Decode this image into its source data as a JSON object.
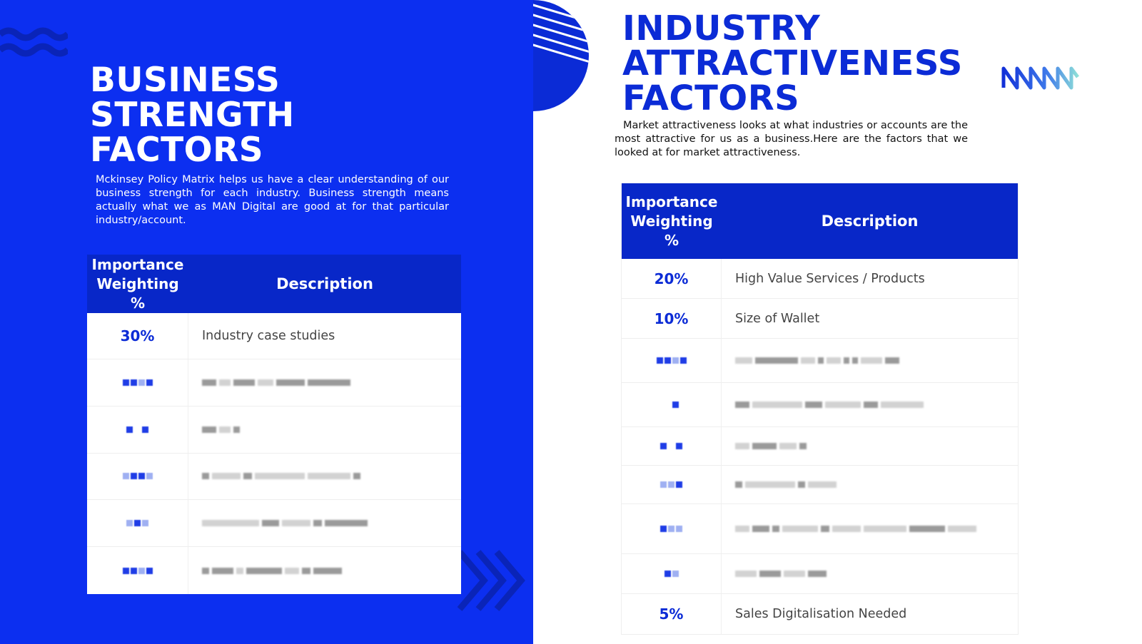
{
  "left": {
    "title_lines": [
      "BUSINESS",
      "STRENGTH",
      "FACTORS"
    ],
    "description": "Mckinsey Policy Matrix helps us have a clear understanding of our business strength for each industry. Business strength means actually what we as MAN Digital are good at for that particular industry/account.",
    "table": {
      "header_weight": "Importance Weighting %",
      "header_description": "Description",
      "rows": [
        {
          "weight": "30%",
          "description": "Industry case studies"
        }
      ]
    }
  },
  "right": {
    "title_lines": [
      "INDUSTRY",
      "ATTRACTIVENESS",
      "FACTORS"
    ],
    "description": "Market attractiveness looks at what industries or accounts are the most attractive for us as a business.Here are the factors that we looked at for market attractiveness.",
    "table": {
      "header_weight": "Importance Weighting %",
      "header_description": "Description",
      "rows_top": [
        {
          "weight": "20%",
          "description": "High Value Services / Products"
        },
        {
          "weight": "10%",
          "description": "Size of Wallet"
        }
      ],
      "rows_bottom": [
        {
          "weight": "5%",
          "description": "Sales Digitalisation Needed"
        }
      ]
    }
  },
  "colors": {
    "panel_blue": "#0c2ff0",
    "header_blue": "#0827c8",
    "title_blue": "#0b2bd6"
  },
  "icons": [
    "wave-decoration",
    "chevron-decoration",
    "striped-circle-decoration",
    "man-digital-logo"
  ]
}
